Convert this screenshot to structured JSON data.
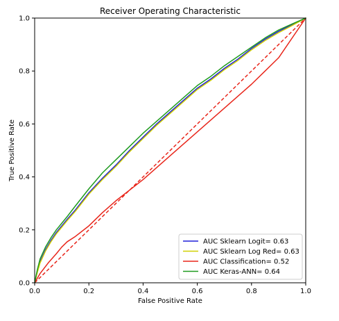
{
  "chart_data": {
    "type": "line",
    "title": "Receiver Operating Characteristic",
    "xlabel": "False Positive Rate",
    "ylabel": "True Positive Rate",
    "xlim": [
      0,
      1
    ],
    "ylim": [
      0,
      1
    ],
    "xticks": [
      "0.0",
      "0.2",
      "0.4",
      "0.6",
      "0.8",
      "1.0"
    ],
    "yticks": [
      "0.0",
      "0.2",
      "0.4",
      "0.6",
      "0.8",
      "1.0"
    ],
    "grid": false,
    "legend_position": "lower-right",
    "series": [
      {
        "name": "AUC Sklearn Logit= 0.63",
        "color": "#1f1fd8",
        "x": [
          0,
          0.01,
          0.02,
          0.04,
          0.06,
          0.08,
          0.1,
          0.12,
          0.15,
          0.2,
          0.25,
          0.3,
          0.35,
          0.4,
          0.45,
          0.5,
          0.55,
          0.6,
          0.65,
          0.7,
          0.75,
          0.8,
          0.85,
          0.9,
          0.95,
          1.0
        ],
        "y": [
          0,
          0.045,
          0.08,
          0.125,
          0.16,
          0.19,
          0.215,
          0.24,
          0.275,
          0.34,
          0.395,
          0.445,
          0.5,
          0.55,
          0.6,
          0.645,
          0.69,
          0.735,
          0.77,
          0.81,
          0.845,
          0.885,
          0.92,
          0.95,
          0.975,
          1.0
        ]
      },
      {
        "name": "AUC Sklearn Log Red= 0.63",
        "color": "#cfcf00",
        "x": [
          0,
          0.01,
          0.02,
          0.04,
          0.06,
          0.08,
          0.1,
          0.12,
          0.15,
          0.2,
          0.25,
          0.3,
          0.35,
          0.4,
          0.45,
          0.5,
          0.55,
          0.6,
          0.65,
          0.7,
          0.75,
          0.8,
          0.85,
          0.9,
          0.95,
          1.0
        ],
        "y": [
          0,
          0.04,
          0.075,
          0.12,
          0.155,
          0.185,
          0.21,
          0.235,
          0.27,
          0.335,
          0.39,
          0.44,
          0.495,
          0.545,
          0.595,
          0.64,
          0.685,
          0.73,
          0.765,
          0.805,
          0.84,
          0.88,
          0.915,
          0.945,
          0.972,
          1.0
        ]
      },
      {
        "name": "AUC Classification= 0.52",
        "color": "#e8251a",
        "x": [
          0,
          0.02,
          0.05,
          0.08,
          0.1,
          0.12,
          0.15,
          0.2,
          0.25,
          0.3,
          0.4,
          0.5,
          0.6,
          0.7,
          0.8,
          0.9,
          1.0
        ],
        "y": [
          0,
          0.035,
          0.075,
          0.11,
          0.135,
          0.155,
          0.175,
          0.215,
          0.265,
          0.31,
          0.39,
          0.48,
          0.57,
          0.66,
          0.75,
          0.85,
          1.0
        ]
      },
      {
        "name": "AUC Keras-ANN= 0.64",
        "color": "#1e9a1e",
        "x": [
          0,
          0.01,
          0.02,
          0.04,
          0.06,
          0.08,
          0.1,
          0.12,
          0.15,
          0.2,
          0.25,
          0.3,
          0.35,
          0.4,
          0.45,
          0.5,
          0.55,
          0.6,
          0.65,
          0.7,
          0.75,
          0.8,
          0.85,
          0.9,
          0.95,
          1.0
        ],
        "y": [
          0,
          0.05,
          0.09,
          0.135,
          0.17,
          0.2,
          0.225,
          0.25,
          0.29,
          0.355,
          0.415,
          0.465,
          0.515,
          0.565,
          0.61,
          0.655,
          0.7,
          0.745,
          0.78,
          0.82,
          0.855,
          0.89,
          0.925,
          0.955,
          0.978,
          1.0
        ]
      }
    ],
    "reference_line": {
      "x": [
        0,
        1
      ],
      "y": [
        0,
        1
      ],
      "color": "#e8251a",
      "style": "dashed"
    }
  }
}
